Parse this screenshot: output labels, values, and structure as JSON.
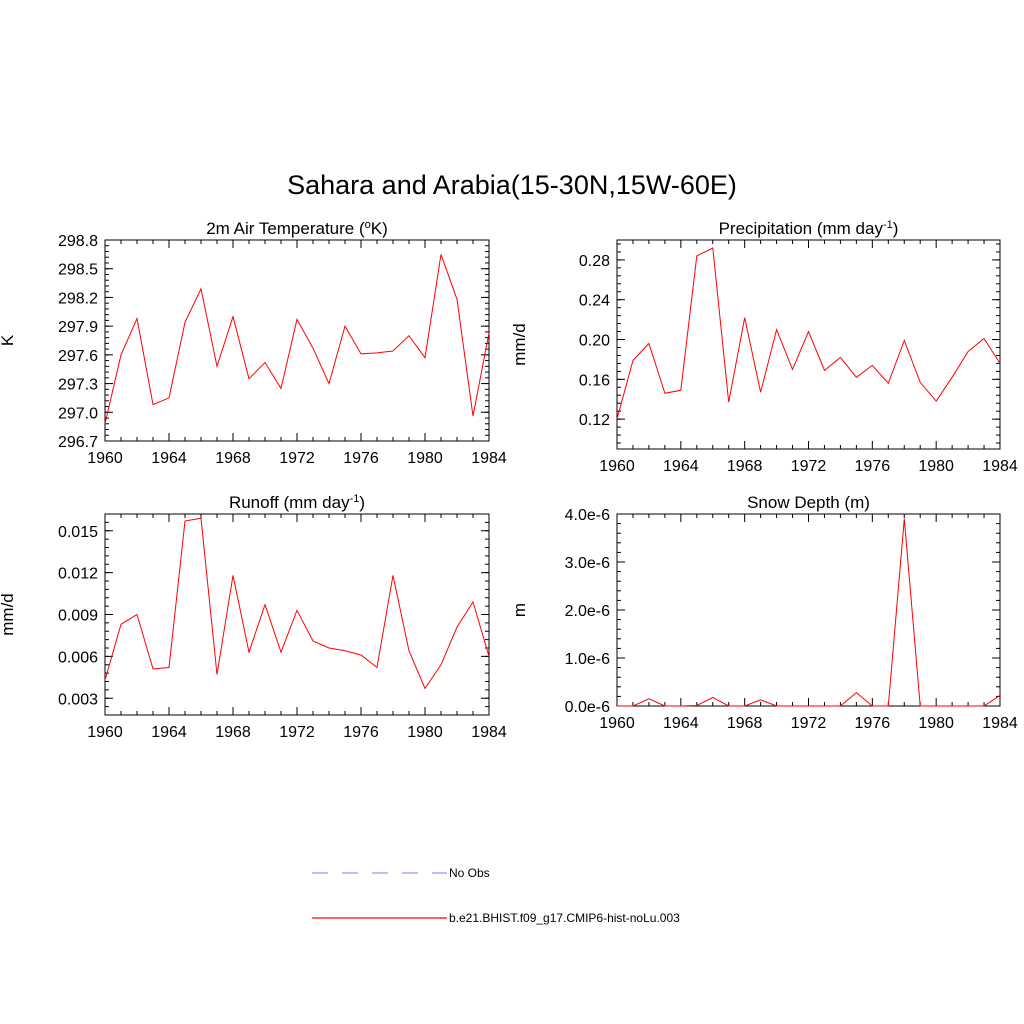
{
  "title": "Sahara and Arabia(15-30N,15W-60E)",
  "line_color": "#ff0000",
  "obs_color": "#9999ff",
  "legend": {
    "obs_label": "No Obs",
    "model_label": "b.e21.BHIST.f09_g17.CMIP6-hist-noLu.003"
  },
  "chart_data": [
    {
      "type": "line",
      "title": "2m Air Temperature (°K)",
      "title_parts": [
        "2m Air Temperature (",
        "o",
        "K)"
      ],
      "ylabel": "K",
      "xlim": [
        1960,
        1984
      ],
      "xticks": [
        "1960",
        "1964",
        "1968",
        "1972",
        "1976",
        "1980",
        "1984"
      ],
      "ylim": [
        296.7,
        298.8
      ],
      "yticks": [
        "296.7",
        "297.0",
        "297.3",
        "297.6",
        "297.9",
        "298.2",
        "298.5",
        "298.8"
      ],
      "x": [
        1960,
        1961,
        1962,
        1963,
        1964,
        1965,
        1966,
        1967,
        1968,
        1969,
        1970,
        1971,
        1972,
        1973,
        1974,
        1975,
        1976,
        1977,
        1978,
        1979,
        1980,
        1981,
        1982,
        1983,
        1984
      ],
      "values": [
        296.88,
        297.6,
        297.98,
        297.08,
        297.15,
        297.94,
        298.29,
        297.48,
        298.0,
        297.35,
        297.52,
        297.25,
        297.97,
        297.67,
        297.3,
        297.9,
        297.61,
        297.62,
        297.64,
        297.8,
        297.57,
        298.65,
        298.18,
        296.96,
        297.83
      ]
    },
    {
      "type": "line",
      "title": "Precipitation (mm day-1)",
      "title_parts": [
        "Precipitation (mm day",
        "-1",
        ")"
      ],
      "ylabel": "mm/d",
      "xlim": [
        1960,
        1984
      ],
      "xticks": [
        "1960",
        "1964",
        "1968",
        "1972",
        "1976",
        "1980",
        "1984"
      ],
      "ylim": [
        0.09,
        0.3
      ],
      "yticks": [
        "0.12",
        "0.16",
        "0.20",
        "0.24",
        "0.28"
      ],
      "x": [
        1960,
        1961,
        1962,
        1963,
        1964,
        1965,
        1966,
        1967,
        1968,
        1969,
        1970,
        1971,
        1972,
        1973,
        1974,
        1975,
        1976,
        1977,
        1978,
        1979,
        1980,
        1981,
        1982,
        1983,
        1984
      ],
      "values": [
        0.12,
        0.179,
        0.196,
        0.146,
        0.149,
        0.284,
        0.292,
        0.137,
        0.222,
        0.147,
        0.21,
        0.17,
        0.208,
        0.169,
        0.182,
        0.162,
        0.174,
        0.156,
        0.199,
        0.157,
        0.138,
        0.162,
        0.188,
        0.201,
        0.176
      ]
    },
    {
      "type": "line",
      "title": "Runoff (mm day-1)",
      "title_parts": [
        "Runoff (mm day",
        "-1",
        ")"
      ],
      "ylabel": "mm/d",
      "xlim": [
        1960,
        1984
      ],
      "xticks": [
        "1960",
        "1964",
        "1968",
        "1972",
        "1976",
        "1980",
        "1984"
      ],
      "ylim": [
        0.0018,
        0.0162
      ],
      "yticks": [
        "0.003",
        "0.006",
        "0.009",
        "0.012",
        "0.015"
      ],
      "x": [
        1960,
        1961,
        1962,
        1963,
        1964,
        1965,
        1966,
        1967,
        1968,
        1969,
        1970,
        1971,
        1972,
        1973,
        1974,
        1975,
        1976,
        1977,
        1978,
        1979,
        1980,
        1981,
        1982,
        1983,
        1984
      ],
      "values": [
        0.0043,
        0.0083,
        0.009,
        0.0051,
        0.0052,
        0.0157,
        0.0159,
        0.0047,
        0.0118,
        0.0063,
        0.0097,
        0.0063,
        0.0093,
        0.0071,
        0.0066,
        0.0064,
        0.0061,
        0.0052,
        0.0118,
        0.0064,
        0.0037,
        0.0054,
        0.0081,
        0.0099,
        0.006
      ]
    },
    {
      "type": "line",
      "title": "Snow Depth (m)",
      "title_parts": [
        "Snow Depth (m)",
        "",
        ""
      ],
      "ylabel": "m",
      "xlim": [
        1960,
        1984
      ],
      "xticks": [
        "1960",
        "1964",
        "1968",
        "1972",
        "1976",
        "1980",
        "1984"
      ],
      "ylim": [
        0,
        4e-06
      ],
      "yticks": [
        "0.0e-6",
        "1.0e-6",
        "2.0e-6",
        "3.0e-6",
        "4.0e-6"
      ],
      "x": [
        1960,
        1961,
        1962,
        1963,
        1964,
        1965,
        1966,
        1967,
        1968,
        1969,
        1970,
        1971,
        1972,
        1973,
        1974,
        1975,
        1976,
        1977,
        1978,
        1979,
        1980,
        1981,
        1982,
        1983,
        1984
      ],
      "values": [
        0,
        0,
        1.5e-07,
        0,
        0,
        1e-08,
        1.8e-07,
        0,
        0,
        1.3e-07,
        0,
        0,
        0,
        0,
        0,
        2.8e-07,
        0,
        0,
        3.9e-06,
        0,
        0,
        0,
        0,
        0,
        2.2e-07
      ]
    }
  ]
}
